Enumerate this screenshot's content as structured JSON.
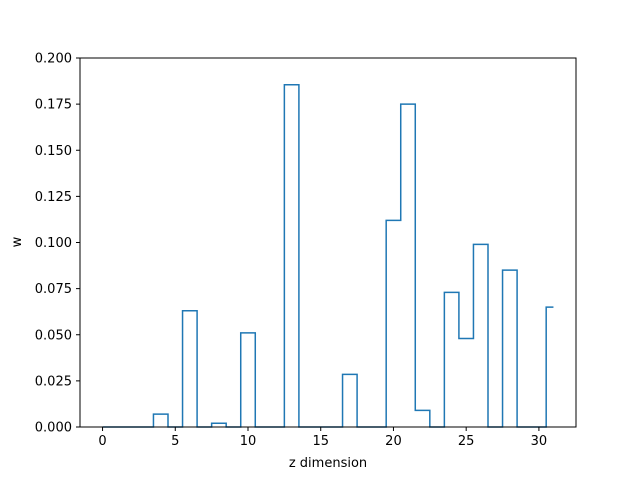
{
  "chart_data": {
    "type": "line",
    "style": "step-histogram",
    "title": "",
    "xlabel": "z dimension",
    "ylabel": "w",
    "xlim": [
      -1.55,
      32.55
    ],
    "ylim": [
      0,
      0.2
    ],
    "xticks": [
      0,
      5,
      10,
      15,
      20,
      25,
      30
    ],
    "yticks": [
      0.0,
      0.025,
      0.05,
      0.075,
      0.1,
      0.125,
      0.15,
      0.175,
      0.2
    ],
    "xtick_labels": [
      "0",
      "5",
      "10",
      "15",
      "20",
      "25",
      "30"
    ],
    "ytick_labels": [
      "0.000",
      "0.025",
      "0.050",
      "0.075",
      "0.100",
      "0.125",
      "0.150",
      "0.175",
      "0.200"
    ],
    "grid": false,
    "line_color": "#1f77b4",
    "x": [
      0,
      1,
      2,
      3,
      4,
      5,
      6,
      7,
      8,
      9,
      10,
      11,
      12,
      13,
      14,
      15,
      16,
      17,
      18,
      19,
      20,
      21,
      22,
      23,
      24,
      25,
      26,
      27,
      28,
      29,
      30,
      31
    ],
    "values": [
      0,
      0,
      0,
      0,
      0.007,
      0,
      0.063,
      0,
      0.002,
      0,
      0.051,
      0,
      0,
      0.1855,
      0,
      0,
      0,
      0.0285,
      0,
      0,
      0.112,
      0.175,
      0.009,
      0,
      0.073,
      0.048,
      0.099,
      0,
      0.085,
      0,
      0,
      0.065
    ]
  }
}
